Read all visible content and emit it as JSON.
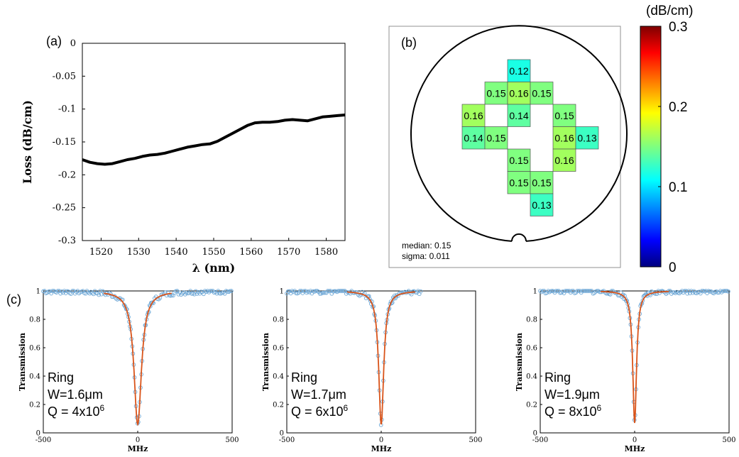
{
  "panel_labels": {
    "a": "(a)",
    "b": "(b)",
    "c": "(c)"
  },
  "chart_data": [
    {
      "panel": "(a)",
      "type": "line",
      "xlabel": "λ (nm)",
      "ylabel": "Loss (dB/cm)",
      "xlim": [
        1515,
        1585
      ],
      "ylim": [
        -0.3,
        0
      ],
      "x_ticks": [
        1520,
        1530,
        1540,
        1550,
        1560,
        1570,
        1580
      ],
      "y_ticks": [
        0,
        -0.05,
        -0.1,
        -0.15,
        -0.2,
        -0.25,
        -0.3
      ],
      "y_tick_labels": [
        "0",
        "-0.05",
        "-0.1",
        "-0.15",
        "-0.2",
        "-0.25",
        "-0.3"
      ],
      "series": [
        {
          "color": "#000000",
          "x": [
            1515,
            1517,
            1519,
            1521,
            1523,
            1525,
            1527,
            1529,
            1531,
            1533,
            1535,
            1537,
            1539,
            1541,
            1543,
            1545,
            1547,
            1549,
            1551,
            1553,
            1555,
            1557,
            1559,
            1561,
            1563,
            1565,
            1567,
            1569,
            1571,
            1573,
            1575,
            1577,
            1579,
            1581,
            1583,
            1585
          ],
          "y": [
            -0.177,
            -0.181,
            -0.183,
            -0.184,
            -0.183,
            -0.18,
            -0.177,
            -0.175,
            -0.172,
            -0.17,
            -0.169,
            -0.167,
            -0.164,
            -0.161,
            -0.158,
            -0.156,
            -0.154,
            -0.153,
            -0.149,
            -0.143,
            -0.137,
            -0.131,
            -0.125,
            -0.121,
            -0.12,
            -0.12,
            -0.119,
            -0.117,
            -0.116,
            -0.117,
            -0.118,
            -0.115,
            -0.112,
            -0.111,
            -0.11,
            -0.109
          ]
        }
      ]
    },
    {
      "panel": "(b)",
      "type": "heatmap",
      "colorbar_title": "(dB/cm)",
      "colorbar_range": [
        0,
        0.3
      ],
      "colorbar_ticks": [
        0,
        0.1,
        0.2,
        0.3
      ],
      "colorbar_tick_labels": [
        "0",
        "0.1",
        "0.2",
        "0.3"
      ],
      "grid_columns": [
        "1",
        "2",
        "3",
        "4",
        "5",
        "6"
      ],
      "grid_rows": [
        "1",
        "2",
        "3",
        "4",
        "5",
        "6",
        "7"
      ],
      "cells": [
        {
          "col": 3,
          "row": 1,
          "value": 0.12,
          "label": "0.12"
        },
        {
          "col": 2,
          "row": 2,
          "value": 0.15,
          "label": "0.15"
        },
        {
          "col": 3,
          "row": 2,
          "value": 0.16,
          "label": "0.16"
        },
        {
          "col": 4,
          "row": 2,
          "value": 0.15,
          "label": "0.15"
        },
        {
          "col": 1,
          "row": 3,
          "value": 0.16,
          "label": "0.16"
        },
        {
          "col": 3,
          "row": 3,
          "value": 0.14,
          "label": "0.14"
        },
        {
          "col": 5,
          "row": 3,
          "value": 0.15,
          "label": "0.15"
        },
        {
          "col": 1,
          "row": 4,
          "value": 0.14,
          "label": "0.14"
        },
        {
          "col": 2,
          "row": 4,
          "value": 0.15,
          "label": "0.15"
        },
        {
          "col": 5,
          "row": 4,
          "value": 0.16,
          "label": "0.16"
        },
        {
          "col": 6,
          "row": 4,
          "value": 0.13,
          "label": "0.13"
        },
        {
          "col": 3,
          "row": 5,
          "value": 0.15,
          "label": "0.15"
        },
        {
          "col": 5,
          "row": 5,
          "value": 0.16,
          "label": "0.16"
        },
        {
          "col": 3,
          "row": 6,
          "value": 0.15,
          "label": "0.15"
        },
        {
          "col": 4,
          "row": 6,
          "value": 0.15,
          "label": "0.15"
        },
        {
          "col": 4,
          "row": 7,
          "value": 0.13,
          "label": "0.13"
        }
      ],
      "stats": {
        "median": "median: 0.15",
        "sigma": "sigma: 0.011"
      }
    },
    {
      "panel": "(c)",
      "type": "scatter",
      "xlabel": "MHz",
      "ylabel": "Transmission",
      "xlim": [
        -500,
        500
      ],
      "ylim": [
        0,
        1
      ],
      "x_ticks": [
        -500,
        0,
        500
      ],
      "y_ticks": [
        0,
        0.2,
        0.4,
        0.6,
        0.8,
        1
      ],
      "y_tick_labels": [
        "0",
        "0.2",
        "0.4",
        "0.6",
        "0.8",
        "1"
      ],
      "annotation": [
        "Ring",
        "W=1.6μm",
        "Q = 4x10",
        "6"
      ],
      "data_color": "#6fa8d6",
      "fit_color": "#d95319",
      "lorentzian": {
        "center": 0,
        "fwhm_mhz": 48,
        "min_transmission": 0.06
      },
      "data_x_range": [
        -500,
        500
      ]
    },
    {
      "panel": "(c)",
      "type": "scatter",
      "xlabel": "MHz",
      "ylabel": "Transmission",
      "xlim": [
        -500,
        500
      ],
      "ylim": [
        0,
        1
      ],
      "x_ticks": [
        -500,
        0,
        500
      ],
      "y_ticks": [
        0,
        0.2,
        0.4,
        0.6,
        0.8,
        1
      ],
      "y_tick_labels": [
        "0",
        "0.2",
        "0.4",
        "0.6",
        "0.8",
        "1"
      ],
      "annotation": [
        "Ring",
        "W=1.7μm",
        "Q = 6x10",
        "6"
      ],
      "data_color": "#6fa8d6",
      "fit_color": "#d95319",
      "lorentzian": {
        "center": 0,
        "fwhm_mhz": 32,
        "min_transmission": 0.06
      },
      "data_x_range": [
        -500,
        210
      ]
    },
    {
      "panel": "(c)",
      "type": "scatter",
      "xlabel": "MHz",
      "ylabel": "Transmission",
      "xlim": [
        -500,
        500
      ],
      "ylim": [
        0,
        1
      ],
      "x_ticks": [
        -500,
        0,
        500
      ],
      "y_ticks": [
        0,
        0.2,
        0.4,
        0.6,
        0.8,
        1
      ],
      "y_tick_labels": [
        "0",
        "0.2",
        "0.4",
        "0.6",
        "0.8",
        "1"
      ],
      "annotation": [
        "Ring",
        "W=1.9μm",
        "Q = 8x10",
        "6"
      ],
      "data_color": "#6fa8d6",
      "fit_color": "#d95319",
      "lorentzian": {
        "center": 0,
        "fwhm_mhz": 24,
        "min_transmission": 0.07
      },
      "data_x_range": [
        -500,
        500
      ]
    }
  ]
}
